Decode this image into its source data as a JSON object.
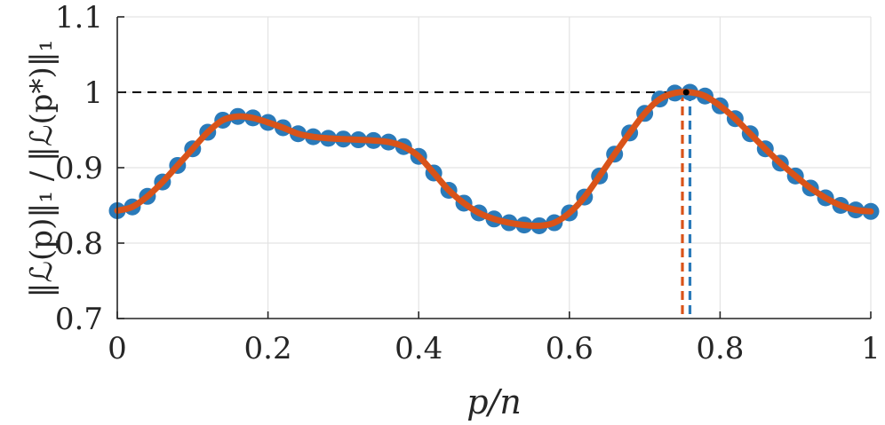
{
  "chart_data": {
    "type": "line",
    "title": "",
    "xlabel": "p/n",
    "ylabel": "‖ℒ(p)‖₁ / ‖ℒ(p*)‖₁",
    "xlim": [
      0,
      1
    ],
    "ylim": [
      0.7,
      1.1
    ],
    "xticks": [
      0,
      0.2,
      0.4,
      0.6,
      0.8,
      1
    ],
    "yticks": [
      0.7,
      0.8,
      0.9,
      1,
      1.1
    ],
    "xtick_labels": [
      "0",
      "0.2",
      "0.4",
      "0.6",
      "0.8",
      "1"
    ],
    "ytick_labels": [
      "0.7",
      "0.8",
      "0.9",
      "1",
      "1.1"
    ],
    "grid": true,
    "reference_line": {
      "y": 1,
      "x_end": 0.755,
      "style": "dashed",
      "color": "#000000"
    },
    "series": [
      {
        "name": "sampled",
        "style": "markers",
        "color": "#2a7ab9",
        "x": [
          0,
          0.02,
          0.04,
          0.06,
          0.08,
          0.1,
          0.12,
          0.14,
          0.16,
          0.18,
          0.2,
          0.22,
          0.24,
          0.26,
          0.28,
          0.3,
          0.32,
          0.34,
          0.36,
          0.38,
          0.4,
          0.42,
          0.44,
          0.46,
          0.48,
          0.5,
          0.52,
          0.54,
          0.56,
          0.58,
          0.6,
          0.62,
          0.64,
          0.66,
          0.68,
          0.7,
          0.72,
          0.74,
          0.76,
          0.78,
          0.8,
          0.82,
          0.84,
          0.86,
          0.88,
          0.9,
          0.92,
          0.94,
          0.96,
          0.98,
          1.0
        ],
        "y": [
          0.843,
          0.848,
          0.862,
          0.881,
          0.903,
          0.925,
          0.947,
          0.963,
          0.968,
          0.966,
          0.96,
          0.953,
          0.945,
          0.941,
          0.939,
          0.938,
          0.937,
          0.936,
          0.934,
          0.928,
          0.915,
          0.893,
          0.87,
          0.853,
          0.84,
          0.832,
          0.827,
          0.824,
          0.823,
          0.827,
          0.84,
          0.861,
          0.889,
          0.918,
          0.946,
          0.972,
          0.991,
          0.999,
          1.0,
          0.995,
          0.982,
          0.965,
          0.945,
          0.925,
          0.906,
          0.889,
          0.873,
          0.86,
          0.85,
          0.844,
          0.842
        ]
      },
      {
        "name": "interpolated",
        "style": "line",
        "color": "#d95319",
        "x": [
          0,
          0.02,
          0.04,
          0.06,
          0.08,
          0.1,
          0.12,
          0.14,
          0.16,
          0.18,
          0.2,
          0.22,
          0.24,
          0.26,
          0.28,
          0.3,
          0.32,
          0.34,
          0.36,
          0.38,
          0.4,
          0.42,
          0.44,
          0.46,
          0.48,
          0.5,
          0.52,
          0.54,
          0.56,
          0.58,
          0.6,
          0.62,
          0.64,
          0.66,
          0.68,
          0.7,
          0.72,
          0.74,
          0.76,
          0.78,
          0.8,
          0.82,
          0.84,
          0.86,
          0.88,
          0.9,
          0.92,
          0.94,
          0.96,
          0.98,
          1.0
        ],
        "y": [
          0.843,
          0.848,
          0.862,
          0.881,
          0.903,
          0.925,
          0.947,
          0.963,
          0.968,
          0.966,
          0.96,
          0.953,
          0.945,
          0.941,
          0.939,
          0.938,
          0.937,
          0.936,
          0.934,
          0.928,
          0.915,
          0.893,
          0.87,
          0.853,
          0.84,
          0.832,
          0.827,
          0.824,
          0.823,
          0.827,
          0.84,
          0.861,
          0.889,
          0.918,
          0.946,
          0.972,
          0.991,
          0.999,
          1.0,
          0.995,
          0.982,
          0.965,
          0.945,
          0.925,
          0.906,
          0.889,
          0.873,
          0.86,
          0.85,
          0.844,
          0.842
        ]
      }
    ],
    "maxima": [
      {
        "name": "interpolated-max",
        "x": 0.75,
        "y": 1.0,
        "color": "#d95319"
      },
      {
        "name": "sampled-max",
        "x": 0.76,
        "y": 1.0,
        "color": "#2a7ab9"
      }
    ],
    "peak_point": {
      "x": 0.755,
      "y": 1.0,
      "color": "#000000"
    }
  }
}
